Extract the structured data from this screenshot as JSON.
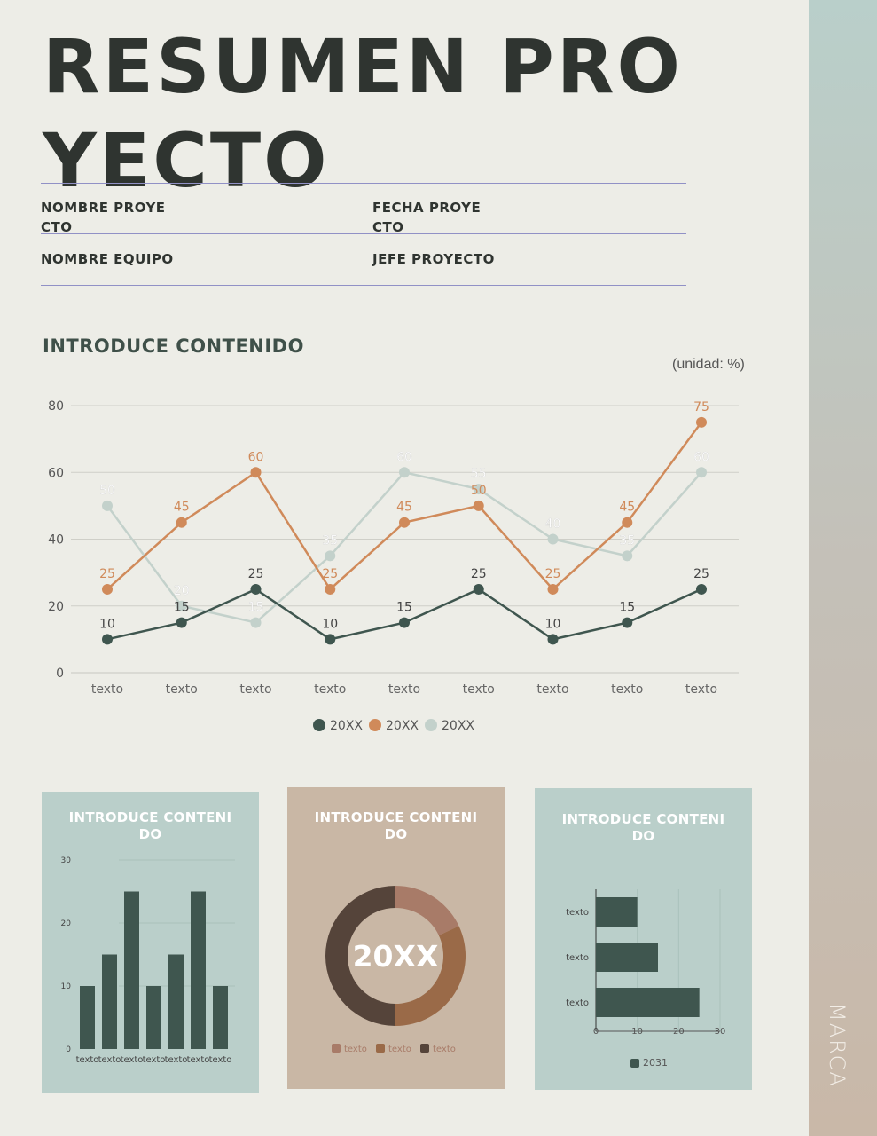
{
  "header": {
    "title": "RESUMEN PROYECTO",
    "fields": {
      "project_name": "NOMBRE PROYECTO",
      "project_date": "FECHA PROYECTO",
      "team_name": "NOMBRE EQUIPO",
      "project_lead": "JEFE PROYECTO"
    }
  },
  "section_title": "INTRODUCE CONTENIDO",
  "unit_label": "(unidad: %)",
  "brand": "MARCA",
  "colors": {
    "dark": "#3f564f",
    "orange": "#d08a5a",
    "light": "#c3d1cb",
    "sidebar_top": "#b9cfca",
    "sidebar_bottom": "#c9b8a8"
  },
  "chart_data": [
    {
      "type": "line",
      "categories": [
        "texto",
        "texto",
        "texto",
        "texto",
        "texto",
        "texto",
        "texto",
        "texto",
        "texto"
      ],
      "ylim": [
        0,
        80
      ],
      "yticks": [
        0,
        20,
        40,
        60,
        80
      ],
      "grid": true,
      "legend": "bottom",
      "series": [
        {
          "name": "20XX",
          "color": "#3f564f",
          "values": [
            10,
            15,
            25,
            10,
            15,
            25,
            10,
            15,
            25
          ]
        },
        {
          "name": "20XX",
          "color": "#d08a5a",
          "values": [
            25,
            45,
            60,
            25,
            45,
            50,
            25,
            45,
            75
          ]
        },
        {
          "name": "20XX",
          "color": "#c3d1cb",
          "values": [
            50,
            20,
            15,
            35,
            60,
            55,
            40,
            35,
            60
          ]
        }
      ]
    },
    {
      "type": "bar",
      "title": "INTRODUCE CONTENIDO",
      "categories": [
        "texto",
        "texto",
        "texto",
        "texto",
        "texto",
        "texto",
        "texto"
      ],
      "values": [
        10,
        15,
        25,
        10,
        15,
        25,
        10
      ],
      "ylim": [
        0,
        30
      ],
      "yticks": [
        0,
        10,
        20,
        30
      ],
      "grid": true
    },
    {
      "type": "pie",
      "title": "INTRODUCE CONTENIDO",
      "center_label": "20XX",
      "categories": [
        "texto",
        "texto",
        "texto"
      ],
      "values": [
        18,
        32,
        50
      ],
      "colors": [
        "#a87b68",
        "#9a6a48",
        "#55443a"
      ],
      "legend": "bottom"
    },
    {
      "type": "bar",
      "orientation": "horizontal",
      "title": "INTRODUCE CONTENIDO",
      "categories": [
        "texto",
        "texto",
        "texto"
      ],
      "values": [
        10,
        15,
        25
      ],
      "xlim": [
        0,
        30
      ],
      "xticks": [
        0,
        10,
        20,
        30
      ],
      "series_name": "2031",
      "legend": "bottom"
    }
  ]
}
